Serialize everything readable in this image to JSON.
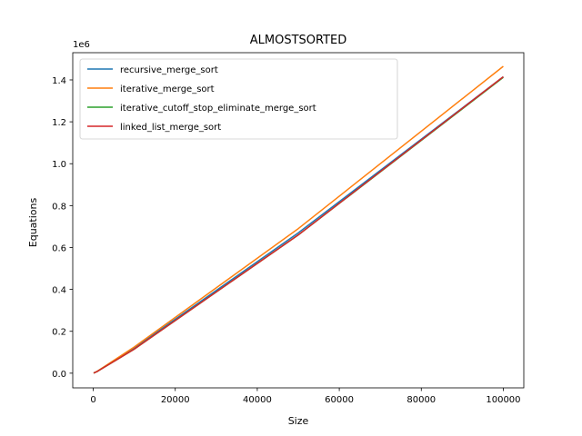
{
  "chart_data": {
    "type": "line",
    "title": "ALMOSTSORTED",
    "xlabel": "Size",
    "ylabel": "Equations",
    "y_offset_label": "1e6",
    "xlim": [
      -5000,
      105000
    ],
    "ylim": [
      -70000,
      1530000
    ],
    "x_ticks": [
      0,
      20000,
      40000,
      60000,
      80000,
      100000
    ],
    "x_tick_labels": [
      "0",
      "20000",
      "40000",
      "60000",
      "80000",
      "100000"
    ],
    "y_ticks": [
      0,
      200000,
      400000,
      600000,
      800000,
      1000000,
      1200000,
      1400000
    ],
    "y_tick_labels": [
      "0.0",
      "0.2",
      "0.4",
      "0.6",
      "0.8",
      "1.0",
      "1.2",
      "1.4"
    ],
    "grid": false,
    "legend_position": "top-left",
    "x": [
      100,
      1000,
      10000,
      50000,
      100000
    ],
    "series": [
      {
        "name": "recursive_merge_sort",
        "color": "#1f77b4",
        "values": [
          700,
          9000,
          120000,
          670000,
          1415000
        ]
      },
      {
        "name": "iterative_merge_sort",
        "color": "#ff7f0e",
        "values": [
          700,
          9500,
          125000,
          690000,
          1465000
        ]
      },
      {
        "name": "iterative_cutoff_stop_eliminate_merge_sort",
        "color": "#2ca02c",
        "values": [
          600,
          8500,
          115000,
          660000,
          1412000
        ]
      },
      {
        "name": "linked_list_merge_sort",
        "color": "#d62728",
        "values": [
          600,
          8500,
          115000,
          660000,
          1415000
        ]
      }
    ]
  }
}
